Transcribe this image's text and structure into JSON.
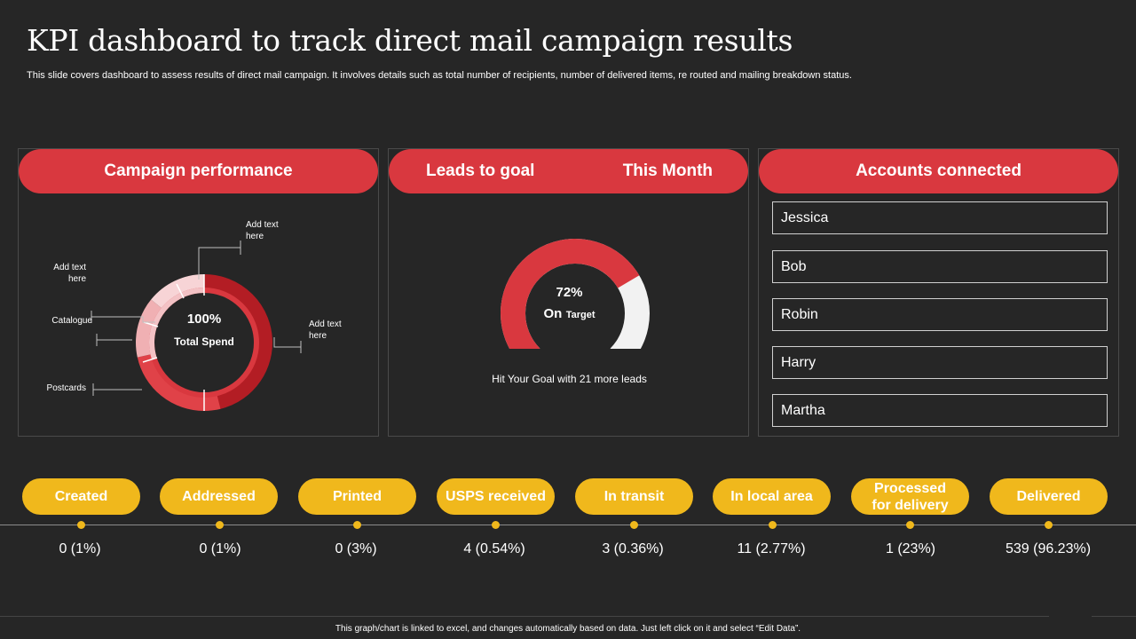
{
  "header": {
    "title": "KPI dashboard to track direct mail campaign results",
    "subtitle": "This slide covers dashboard to assess results of direct mail campaign. It involves details such as total number of recipients, number of delivered items, re routed and mailing breakdown status."
  },
  "campaign": {
    "title": "Campaign performance",
    "center_value": "100%",
    "center_label": "Total Spend",
    "labels": {
      "top": "Add text here",
      "upper_left": "Add text here",
      "catalogue": "Catalogue",
      "postcards": "Postcards",
      "right": "Add text here"
    },
    "colors": [
      "#b31d24",
      "#d9383f",
      "#f2c4c6",
      "#e56d72"
    ]
  },
  "leads": {
    "title": "Leads to goal",
    "period": "This Month",
    "percent_value": 72,
    "percent_label": "72%",
    "on_label": "On",
    "target_label": "Target",
    "caption": "Hit Your Goal with 21 more leads"
  },
  "accounts": {
    "title": "Accounts connected",
    "items": [
      "Jessica",
      "Bob",
      "Robin",
      "Harry",
      "Martha"
    ]
  },
  "timeline": {
    "stages": [
      {
        "label": "Created",
        "value": "0 (1%)"
      },
      {
        "label": "Addressed",
        "value": "0 (1%)"
      },
      {
        "label": "Printed",
        "value": "0 (3%)"
      },
      {
        "label": "USPS received",
        "value": "4 (0.54%)"
      },
      {
        "label": "In transit",
        "value": "3 (0.36%)"
      },
      {
        "label": "In local area",
        "value": "11 (2.77%)"
      },
      {
        "label": "Processed for delivery",
        "value": "1 (23%)"
      },
      {
        "label": "Delivered",
        "value": "539 (96.23%)"
      }
    ]
  },
  "footer": {
    "note": "This graph/chart is linked to excel, and changes automatically based on data. Just left click on it and select “Edit Data”."
  },
  "colors": {
    "background": "#262626",
    "accent_red": "#d9383f",
    "accent_yellow": "#f0b81c"
  }
}
